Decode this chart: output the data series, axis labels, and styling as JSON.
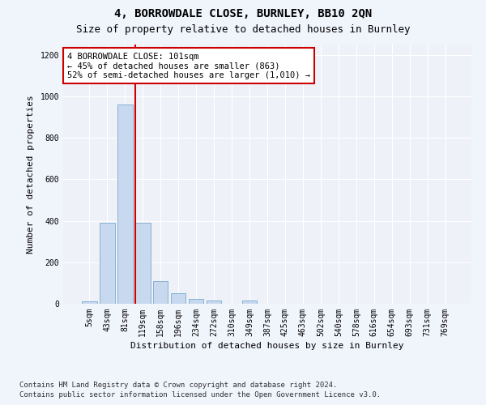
{
  "title": "4, BORROWDALE CLOSE, BURNLEY, BB10 2QN",
  "subtitle": "Size of property relative to detached houses in Burnley",
  "xlabel": "Distribution of detached houses by size in Burnley",
  "ylabel": "Number of detached properties",
  "categories": [
    "5sqm",
    "43sqm",
    "81sqm",
    "119sqm",
    "158sqm",
    "196sqm",
    "234sqm",
    "272sqm",
    "310sqm",
    "349sqm",
    "387sqm",
    "425sqm",
    "463sqm",
    "502sqm",
    "540sqm",
    "578sqm",
    "616sqm",
    "654sqm",
    "693sqm",
    "731sqm",
    "769sqm"
  ],
  "values": [
    10,
    390,
    960,
    390,
    110,
    50,
    25,
    15,
    0,
    15,
    0,
    0,
    0,
    0,
    0,
    0,
    0,
    0,
    0,
    0,
    0
  ],
  "bar_color": "#c8d8ee",
  "bar_edgecolor": "#7aaace",
  "vline_x": 2.57,
  "vline_color": "#cc0000",
  "ylim": [
    0,
    1250
  ],
  "yticks": [
    0,
    200,
    400,
    600,
    800,
    1000,
    1200
  ],
  "annotation_text": "4 BORROWDALE CLOSE: 101sqm\n← 45% of detached houses are smaller (863)\n52% of semi-detached houses are larger (1,010) →",
  "annotation_box_facecolor": "#ffffff",
  "annotation_box_edgecolor": "#cc0000",
  "footnote1": "Contains HM Land Registry data © Crown copyright and database right 2024.",
  "footnote2": "Contains public sector information licensed under the Open Government Licence v3.0.",
  "background_color": "#f0f4fb",
  "plot_background_color": "#eef2f8",
  "title_fontsize": 10,
  "subtitle_fontsize": 9,
  "annotation_fontsize": 7.5,
  "footnote_fontsize": 6.5,
  "xlabel_fontsize": 8,
  "ylabel_fontsize": 8,
  "tick_fontsize": 7
}
